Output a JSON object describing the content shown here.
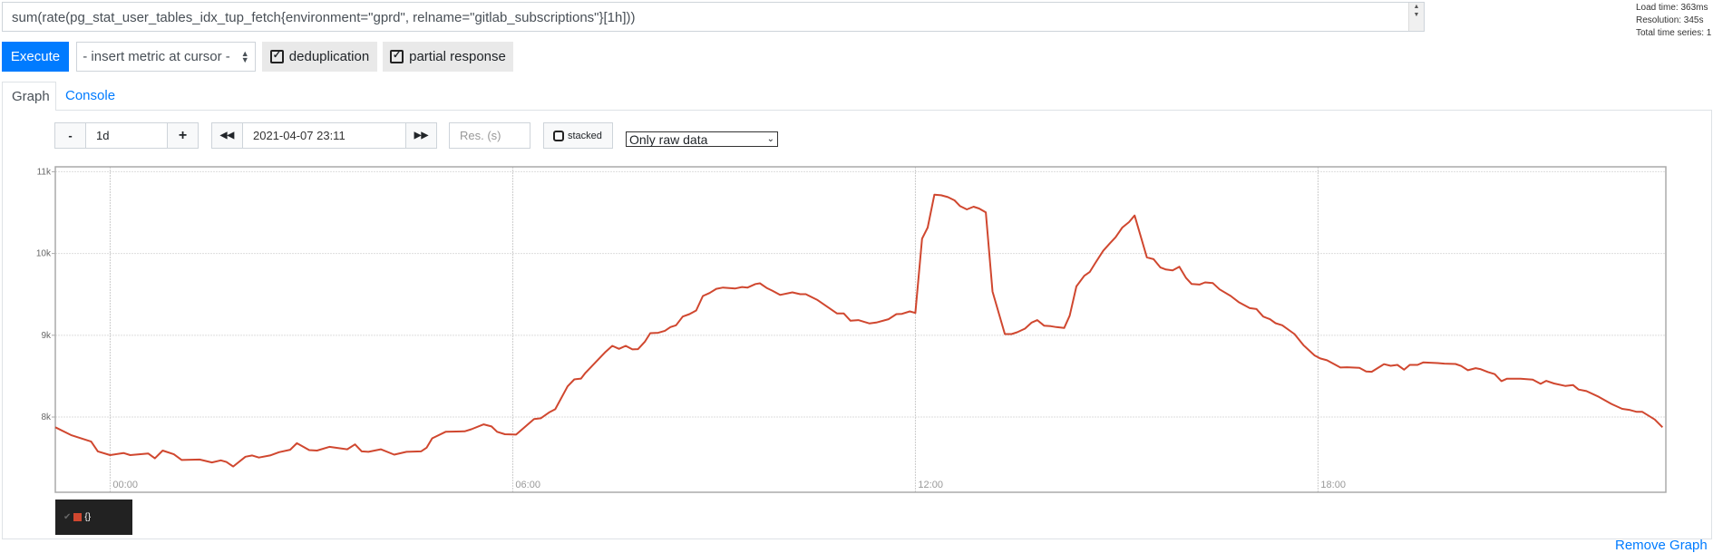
{
  "query": {
    "value": "sum(rate(pg_stat_user_tables_idx_tup_fetch{environment=\"gprd\", relname=\"gitlab_subscriptions\"}[1h]))"
  },
  "stats": {
    "load_time": "Load time: 363ms",
    "resolution": "Resolution: 345s",
    "total_series": "Total time series: 1"
  },
  "toolbar": {
    "execute_label": "Execute",
    "metric_select": "- insert metric at cursor -",
    "deduplication_label": "deduplication",
    "partial_response_label": "partial response"
  },
  "tabs": [
    {
      "label": "Graph",
      "active": true
    },
    {
      "label": "Console",
      "active": false
    }
  ],
  "graph_controls": {
    "range": "1d",
    "minus": "-",
    "plus": "+",
    "end_time": "2021-04-07 23:11",
    "resolution_placeholder": "Res. (s)",
    "stacked_label": "stacked",
    "stacked": false,
    "data_mode": "Only raw data"
  },
  "legend": {
    "series_label": "{}",
    "color": "#d0472f"
  },
  "remove_graph": "Remove Graph",
  "chart_data": {
    "type": "line",
    "xlim": [
      "2021-04-06 23:11",
      "2021-04-07 23:11"
    ],
    "ylim": [
      7080,
      11060
    ],
    "y_ticks": [
      "8k",
      "9k",
      "10k",
      "11k"
    ],
    "y_tick_values": [
      8000,
      9000,
      10000,
      11000
    ],
    "x_ticks": [
      "00:00",
      "06:00",
      "12:00",
      "18:00"
    ],
    "x_tick_values": [
      "2021-04-07 00:00",
      "2021-04-07 06:00",
      "2021-04-07 12:00",
      "2021-04-07 18:00"
    ],
    "grid": true,
    "series": [
      {
        "color": "#d0472f",
        "points": [
          [
            "2021-04-06 23:11",
            7875
          ],
          [
            "2021-04-06 23:25",
            7780
          ],
          [
            "2021-04-06 23:43",
            7700
          ],
          [
            "2021-04-06 23:49",
            7580
          ],
          [
            "2021-04-07 00:00",
            7535
          ],
          [
            "2021-04-07 00:12",
            7560
          ],
          [
            "2021-04-07 00:18",
            7535
          ],
          [
            "2021-04-07 00:34",
            7555
          ],
          [
            "2021-04-07 00:40",
            7495
          ],
          [
            "2021-04-07 00:47",
            7590
          ],
          [
            "2021-04-07 00:57",
            7545
          ],
          [
            "2021-04-07 01:04",
            7475
          ],
          [
            "2021-04-07 01:20",
            7480
          ],
          [
            "2021-04-07 01:31",
            7445
          ],
          [
            "2021-04-07 01:39",
            7470
          ],
          [
            "2021-04-07 01:44",
            7450
          ],
          [
            "2021-04-07 01:50",
            7395
          ],
          [
            "2021-04-07 02:01",
            7515
          ],
          [
            "2021-04-07 02:07",
            7530
          ],
          [
            "2021-04-07 02:13",
            7505
          ],
          [
            "2021-04-07 02:23",
            7530
          ],
          [
            "2021-04-07 02:31",
            7570
          ],
          [
            "2021-04-07 02:41",
            7600
          ],
          [
            "2021-04-07 02:47",
            7680
          ],
          [
            "2021-04-07 02:58",
            7595
          ],
          [
            "2021-04-07 03:05",
            7590
          ],
          [
            "2021-04-07 03:16",
            7635
          ],
          [
            "2021-04-07 03:32",
            7605
          ],
          [
            "2021-04-07 03:39",
            7665
          ],
          [
            "2021-04-07 03:45",
            7580
          ],
          [
            "2021-04-07 03:51",
            7575
          ],
          [
            "2021-04-07 04:02",
            7605
          ],
          [
            "2021-04-07 04:14",
            7540
          ],
          [
            "2021-04-07 04:25",
            7575
          ],
          [
            "2021-04-07 04:38",
            7580
          ],
          [
            "2021-04-07 04:43",
            7625
          ],
          [
            "2021-04-07 04:48",
            7740
          ],
          [
            "2021-04-07 05:00",
            7820
          ],
          [
            "2021-04-07 05:17",
            7825
          ],
          [
            "2021-04-07 05:23",
            7850
          ],
          [
            "2021-04-07 05:34",
            7910
          ],
          [
            "2021-04-07 05:41",
            7885
          ],
          [
            "2021-04-07 05:46",
            7820
          ],
          [
            "2021-04-07 05:53",
            7790
          ],
          [
            "2021-04-07 06:03",
            7785
          ],
          [
            "2021-04-07 06:19",
            7975
          ],
          [
            "2021-04-07 06:25",
            7985
          ],
          [
            "2021-04-07 06:33",
            8060
          ],
          [
            "2021-04-07 06:38",
            8095
          ],
          [
            "2021-04-07 06:49",
            8375
          ],
          [
            "2021-04-07 06:55",
            8460
          ],
          [
            "2021-04-07 07:01",
            8470
          ],
          [
            "2021-04-07 07:05",
            8540
          ],
          [
            "2021-04-07 07:23",
            8797
          ],
          [
            "2021-04-07 07:29",
            8870
          ],
          [
            "2021-04-07 07:35",
            8834
          ],
          [
            "2021-04-07 07:41",
            8870
          ],
          [
            "2021-04-07 07:47",
            8827
          ],
          [
            "2021-04-07 07:52",
            8830
          ],
          [
            "2021-04-07 07:58",
            8919
          ],
          [
            "2021-04-07 08:03",
            9026
          ],
          [
            "2021-04-07 08:10",
            9030
          ],
          [
            "2021-04-07 08:16",
            9055
          ],
          [
            "2021-04-07 08:21",
            9100
          ],
          [
            "2021-04-07 08:26",
            9122
          ],
          [
            "2021-04-07 08:32",
            9229
          ],
          [
            "2021-04-07 08:38",
            9258
          ],
          [
            "2021-04-07 08:44",
            9303
          ],
          [
            "2021-04-07 08:50",
            9480
          ],
          [
            "2021-04-07 08:56",
            9517
          ],
          [
            "2021-04-07 09:02",
            9568
          ],
          [
            "2021-04-07 09:08",
            9583
          ],
          [
            "2021-04-07 09:19",
            9572
          ],
          [
            "2021-04-07 09:25",
            9590
          ],
          [
            "2021-04-07 09:30",
            9583
          ],
          [
            "2021-04-07 09:37",
            9627
          ],
          [
            "2021-04-07 09:41",
            9635
          ],
          [
            "2021-04-07 09:47",
            9579
          ],
          [
            "2021-04-07 09:52",
            9546
          ],
          [
            "2021-04-07 09:59",
            9494
          ],
          [
            "2021-04-07 10:10",
            9524
          ],
          [
            "2021-04-07 10:17",
            9502
          ],
          [
            "2021-04-07 10:22",
            9502
          ],
          [
            "2021-04-07 10:32",
            9435
          ],
          [
            "2021-04-07 10:41",
            9350
          ],
          [
            "2021-04-07 10:50",
            9266
          ],
          [
            "2021-04-07 10:56",
            9266
          ],
          [
            "2021-04-07 11:02",
            9177
          ],
          [
            "2021-04-07 11:09",
            9185
          ],
          [
            "2021-04-07 11:19",
            9144
          ],
          [
            "2021-04-07 11:25",
            9155
          ],
          [
            "2021-04-07 11:36",
            9196
          ],
          [
            "2021-04-07 11:43",
            9258
          ],
          [
            "2021-04-07 11:48",
            9262
          ],
          [
            "2021-04-07 11:55",
            9292
          ],
          [
            "2021-04-07 12:00",
            9273
          ],
          [
            "2021-04-07 12:06",
            10181
          ],
          [
            "2021-04-07 12:11",
            10317
          ],
          [
            "2021-04-07 12:17",
            10720
          ],
          [
            "2021-04-07 12:23",
            10712
          ],
          [
            "2021-04-07 12:29",
            10690
          ],
          [
            "2021-04-07 12:35",
            10650
          ],
          [
            "2021-04-07 12:40",
            10579
          ],
          [
            "2021-04-07 12:46",
            10539
          ],
          [
            "2021-04-07 12:52",
            10572
          ],
          [
            "2021-04-07 12:57",
            10550
          ],
          [
            "2021-04-07 13:03",
            10502
          ],
          [
            "2021-04-07 13:09",
            9535
          ],
          [
            "2021-04-07 13:20",
            9015
          ],
          [
            "2021-04-07 13:26",
            9015
          ],
          [
            "2021-04-07 13:31",
            9037
          ],
          [
            "2021-04-07 13:38",
            9081
          ],
          [
            "2021-04-07 13:44",
            9155
          ],
          [
            "2021-04-07 13:49",
            9185
          ],
          [
            "2021-04-07 13:55",
            9118
          ],
          [
            "2021-04-07 14:01",
            9111
          ],
          [
            "2021-04-07 14:06",
            9100
          ],
          [
            "2021-04-07 14:13",
            9089
          ],
          [
            "2021-04-07 14:18",
            9240
          ],
          [
            "2021-04-07 14:24",
            9598
          ],
          [
            "2021-04-07 14:31",
            9727
          ],
          [
            "2021-04-07 14:36",
            9775
          ],
          [
            "2021-04-07 14:41",
            9886
          ],
          [
            "2021-04-07 14:48",
            10033
          ],
          [
            "2021-04-07 14:54",
            10125
          ],
          [
            "2021-04-07 14:59",
            10199
          ],
          [
            "2021-04-07 15:05",
            10317
          ],
          [
            "2021-04-07 15:11",
            10384
          ],
          [
            "2021-04-07 15:16",
            10465
          ],
          [
            "2021-04-07 15:27",
            9952
          ],
          [
            "2021-04-07 15:33",
            9930
          ],
          [
            "2021-04-07 15:39",
            9830
          ],
          [
            "2021-04-07 15:44",
            9804
          ],
          [
            "2021-04-07 15:50",
            9793
          ],
          [
            "2021-04-07 15:56",
            9838
          ],
          [
            "2021-04-07 16:02",
            9701
          ],
          [
            "2021-04-07 16:07",
            9627
          ],
          [
            "2021-04-07 16:14",
            9620
          ],
          [
            "2021-04-07 16:19",
            9646
          ],
          [
            "2021-04-07 16:26",
            9638
          ],
          [
            "2021-04-07 16:32",
            9561
          ],
          [
            "2021-04-07 16:42",
            9480
          ],
          [
            "2021-04-07 16:49",
            9406
          ],
          [
            "2021-04-07 16:59",
            9332
          ],
          [
            "2021-04-07 17:05",
            9321
          ],
          [
            "2021-04-07 17:11",
            9229
          ],
          [
            "2021-04-07 17:17",
            9196
          ],
          [
            "2021-04-07 17:22",
            9148
          ],
          [
            "2021-04-07 17:28",
            9122
          ],
          [
            "2021-04-07 17:39",
            9015
          ],
          [
            "2021-04-07 17:47",
            8878
          ],
          [
            "2021-04-07 17:57",
            8753
          ],
          [
            "2021-04-07 18:02",
            8716
          ],
          [
            "2021-04-07 18:08",
            8694
          ],
          [
            "2021-04-07 18:20",
            8605
          ],
          [
            "2021-04-07 18:26",
            8609
          ],
          [
            "2021-04-07 18:37",
            8601
          ],
          [
            "2021-04-07 18:43",
            8557
          ],
          [
            "2021-04-07 18:48",
            8553
          ],
          [
            "2021-04-07 18:59",
            8646
          ],
          [
            "2021-04-07 19:05",
            8627
          ],
          [
            "2021-04-07 19:11",
            8638
          ],
          [
            "2021-04-07 19:17",
            8579
          ],
          [
            "2021-04-07 19:22",
            8638
          ],
          [
            "2021-04-07 19:29",
            8638
          ],
          [
            "2021-04-07 19:34",
            8668
          ],
          [
            "2021-04-07 19:47",
            8660
          ],
          [
            "2021-04-07 19:53",
            8653
          ],
          [
            "2021-04-07 20:03",
            8649
          ],
          [
            "2021-04-07 20:08",
            8624
          ],
          [
            "2021-04-07 20:14",
            8572
          ],
          [
            "2021-04-07 20:21",
            8598
          ],
          [
            "2021-04-07 20:25",
            8587
          ],
          [
            "2021-04-07 20:32",
            8550
          ],
          [
            "2021-04-07 20:38",
            8524
          ],
          [
            "2021-04-07 20:44",
            8439
          ],
          [
            "2021-04-07 20:49",
            8469
          ],
          [
            "2021-04-07 21:01",
            8469
          ],
          [
            "2021-04-07 21:12",
            8458
          ],
          [
            "2021-04-07 21:19",
            8406
          ],
          [
            "2021-04-07 21:24",
            8443
          ],
          [
            "2021-04-07 21:31",
            8410
          ],
          [
            "2021-04-07 21:41",
            8380
          ],
          [
            "2021-04-07 21:48",
            8391
          ],
          [
            "2021-04-07 21:53",
            8336
          ],
          [
            "2021-04-07 22:00",
            8317
          ],
          [
            "2021-04-07 22:11",
            8247
          ],
          [
            "2021-04-07 22:22",
            8162
          ],
          [
            "2021-04-07 22:32",
            8100
          ],
          [
            "2021-04-07 22:39",
            8085
          ],
          [
            "2021-04-07 22:45",
            8063
          ],
          [
            "2021-04-07 22:50",
            8063
          ],
          [
            "2021-04-07 23:01",
            7970
          ],
          [
            "2021-04-07 23:08",
            7875
          ]
        ]
      }
    ]
  }
}
